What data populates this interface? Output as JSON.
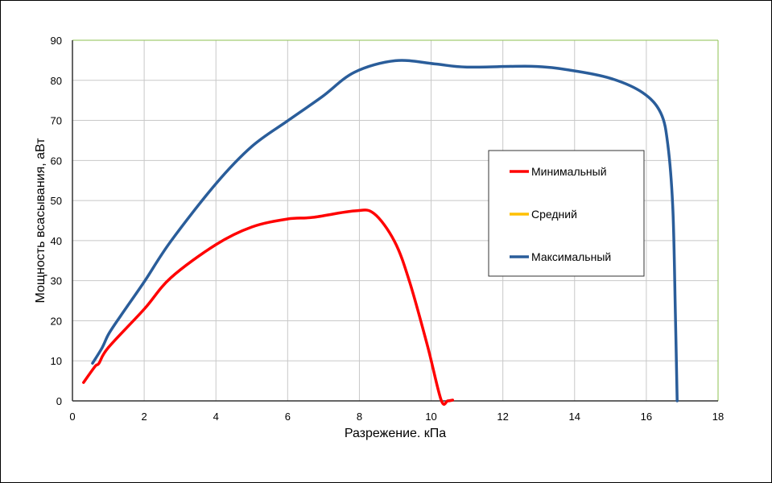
{
  "chart_data": {
    "type": "line",
    "title": "",
    "xlabel": "Разрежение. кПа",
    "ylabel": "Мощность всасывания, аВт",
    "xlim": [
      0,
      18
    ],
    "ylim": [
      0,
      90
    ],
    "x_ticks": [
      "0",
      "2",
      "4",
      "6",
      "8",
      "10",
      "12",
      "14",
      "16",
      "18"
    ],
    "y_ticks": [
      "0",
      "10",
      "20",
      "30",
      "40",
      "50",
      "60",
      "70",
      "80",
      "90"
    ],
    "grid": true,
    "legend_position": "right",
    "series": [
      {
        "name": "Минимальный",
        "color": "#ff0000",
        "x": [
          0.31,
          0.63,
          0.74,
          1.0,
          2.0,
          2.74,
          4.0,
          5.0,
          6.0,
          6.7,
          7.86,
          8.4,
          8.98,
          9.4,
          9.9,
          10.28,
          10.46,
          10.6
        ],
        "y": [
          4.6,
          8.6,
          9.4,
          13.3,
          22.9,
          30.7,
          39.0,
          43.4,
          45.4,
          45.8,
          47.4,
          46.8,
          39.8,
          29.7,
          13.7,
          0.2,
          0,
          0.2
        ]
      },
      {
        "name": "Средний",
        "color": "#ffc000",
        "x": [],
        "y": []
      },
      {
        "name": "Максимальный",
        "color": "#2a5d9a",
        "x": [
          0.56,
          0.83,
          1.01,
          1.35,
          2.0,
          2.74,
          4.0,
          5.0,
          6.0,
          6.96,
          7.86,
          9.0,
          10.1,
          11.0,
          12.8,
          13.9,
          15.0,
          15.9,
          16.4,
          16.6,
          16.74,
          16.81,
          16.86
        ],
        "y": [
          9.4,
          13.3,
          16.7,
          21.3,
          29.7,
          39.8,
          54.2,
          63.5,
          69.9,
          75.9,
          82.0,
          84.9,
          84.1,
          83.3,
          83.5,
          82.5,
          80.5,
          76.9,
          71.9,
          63.9,
          47.8,
          21.7,
          0
        ]
      }
    ]
  }
}
